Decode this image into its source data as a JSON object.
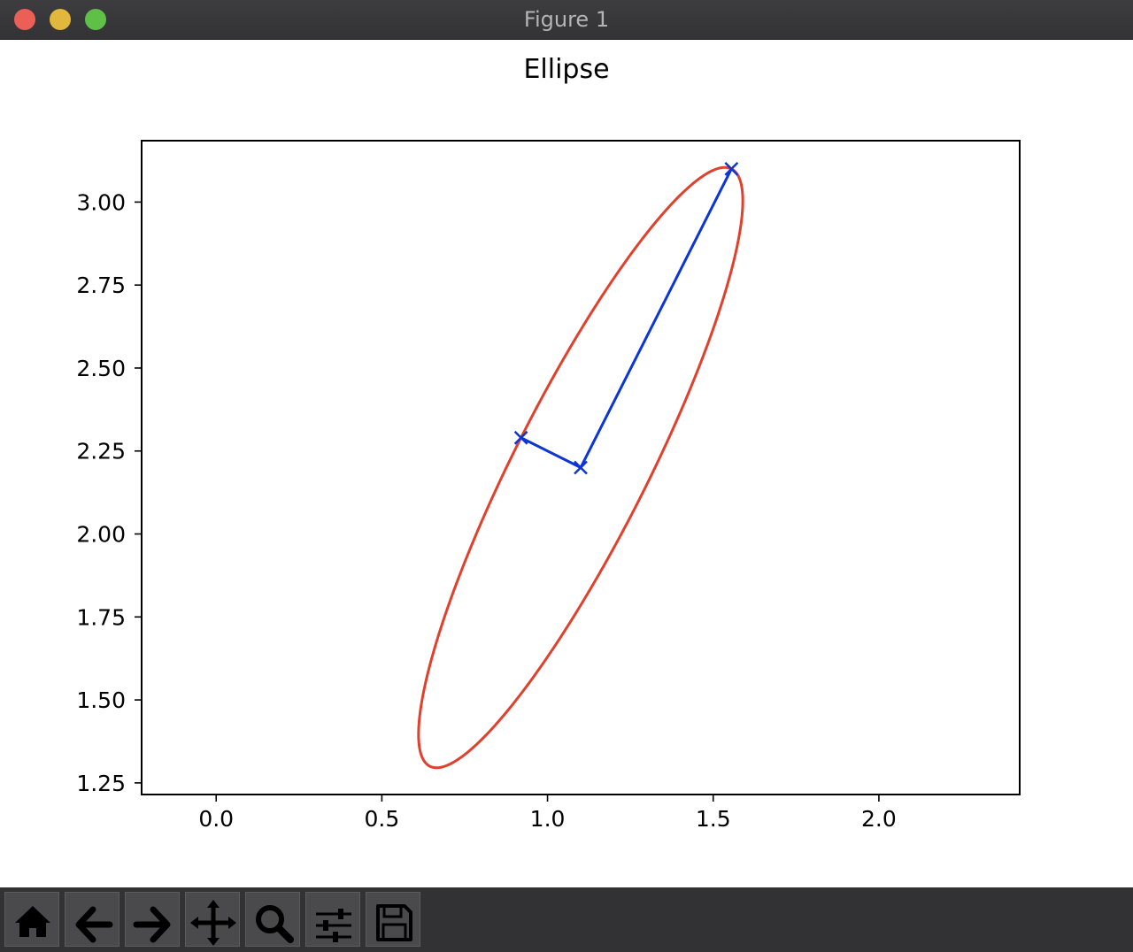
{
  "window": {
    "title": "Figure 1",
    "controls": [
      {
        "name": "close",
        "color": "#ec5f57"
      },
      {
        "name": "minimize",
        "color": "#e2b73e"
      },
      {
        "name": "zoom",
        "color": "#5fc048"
      }
    ]
  },
  "toolbar": {
    "buttons": [
      {
        "name": "home",
        "icon": "home-icon"
      },
      {
        "name": "back",
        "icon": "arrow-left-icon"
      },
      {
        "name": "forward",
        "icon": "arrow-right-icon"
      },
      {
        "name": "pan",
        "icon": "move-icon"
      },
      {
        "name": "zoom",
        "icon": "magnifier-icon"
      },
      {
        "name": "configure-subplots",
        "icon": "sliders-icon"
      },
      {
        "name": "save",
        "icon": "floppy-disk-icon"
      }
    ]
  },
  "chart_data": {
    "type": "line",
    "title": "Ellipse",
    "xlabel": "",
    "ylabel": "",
    "xlim": [
      -0.225,
      2.425
    ],
    "ylim": [
      1.215,
      3.185
    ],
    "xticks": [
      0.0,
      0.5,
      1.0,
      1.5,
      2.0
    ],
    "xtick_labels": [
      "0.0",
      "0.5",
      "1.0",
      "1.5",
      "2.0"
    ],
    "yticks": [
      1.25,
      1.5,
      1.75,
      2.0,
      2.25,
      2.5,
      2.75,
      3.0
    ],
    "ytick_labels": [
      "1.25",
      "1.50",
      "1.75",
      "2.00",
      "2.25",
      "2.50",
      "2.75",
      "3.00"
    ],
    "grid": false,
    "ellipse": {
      "center": [
        1.1,
        2.2
      ],
      "major_axis_endpoint": [
        1.555,
        3.1
      ],
      "minor_axis_endpoint": [
        0.92,
        2.29
      ],
      "color": "#e0412c"
    },
    "series": [
      {
        "marker": "x",
        "color": "#0a35d8",
        "x": [
          0.92,
          1.1,
          1.555
        ],
        "y": [
          2.29,
          2.2,
          3.1
        ]
      }
    ]
  }
}
